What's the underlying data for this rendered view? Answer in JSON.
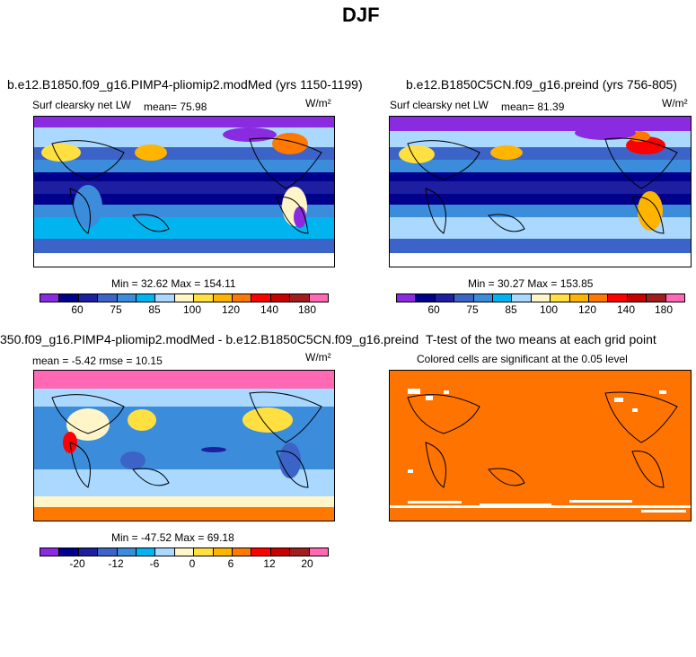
{
  "figure_title": "DJF",
  "panels": [
    {
      "title": "b.e12.B1850.f09_g16.PIMP4-pliomip2.modMed (yrs 1150-1199)",
      "variable": "Surf clearsky net LW",
      "mean_text": "mean=   75.98",
      "units": "W/m²",
      "minmax": "Min =  32.62  Max = 154.11"
    },
    {
      "title": "b.e12.B1850C5CN.f09_g16.preind (yrs 756-805)",
      "variable": "Surf clearsky net LW",
      "mean_text": "mean=   81.39",
      "units": "W/m²",
      "minmax": "Min =  30.27  Max = 153.85"
    },
    {
      "title": "350.f09_g16.PIMP4-pliomip2.modMed - b.e12.B1850C5CN.f09_g16.preind",
      "stats": "mean =  -5.42     rmse =  10.15",
      "units": "W/m²",
      "minmax": "Min = -47.52  Max =  69.18"
    },
    {
      "title": "T-test of the two means at each grid point",
      "subtitle": "Colored cells are significant at the 0.05 level"
    }
  ],
  "colorbar_top": {
    "colors": [
      "#8a2be2",
      "#00008b",
      "#1e1ea0",
      "#3c64c8",
      "#3c8cdc",
      "#00b4f0",
      "#aad8ff",
      "#fff5c8",
      "#ffe040",
      "#ffb400",
      "#ff7800",
      "#ff0000",
      "#c80000",
      "#a01e1e",
      "#ff69b4"
    ],
    "tick_labels": [
      "60",
      "75",
      "85",
      "100",
      "120",
      "140",
      "180"
    ]
  },
  "colorbar_diff": {
    "colors": [
      "#8a2be2",
      "#00008b",
      "#1e1ea0",
      "#3c64c8",
      "#3c8cdc",
      "#00b4f0",
      "#aad8ff",
      "#fff5c8",
      "#ffe040",
      "#ffb400",
      "#ff7800",
      "#ff0000",
      "#c80000",
      "#a01e1e",
      "#ff69b4"
    ],
    "tick_labels": [
      "-20",
      "-12",
      "-6",
      "0",
      "6",
      "12",
      "20"
    ]
  },
  "ttest_color": "#ff7300"
}
